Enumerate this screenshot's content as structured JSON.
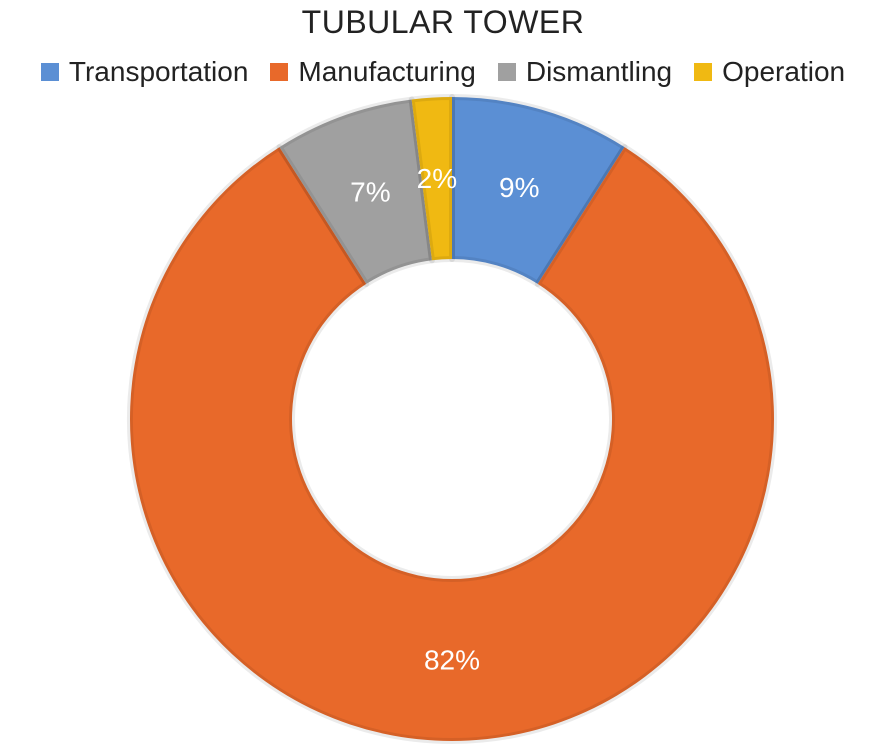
{
  "chart_data": {
    "type": "pie",
    "style": "donut",
    "title": "TUBULAR TOWER",
    "legend_position": "top",
    "categories": [
      "Transportation",
      "Manufacturing",
      "Dismantling",
      "Operation"
    ],
    "values": [
      9,
      82,
      7,
      2
    ],
    "labels": [
      "9%",
      "82%",
      "7%",
      "2%"
    ],
    "colors": [
      "#5b8fd4",
      "#e8692a",
      "#a0a0a0",
      "#f0b912"
    ]
  }
}
